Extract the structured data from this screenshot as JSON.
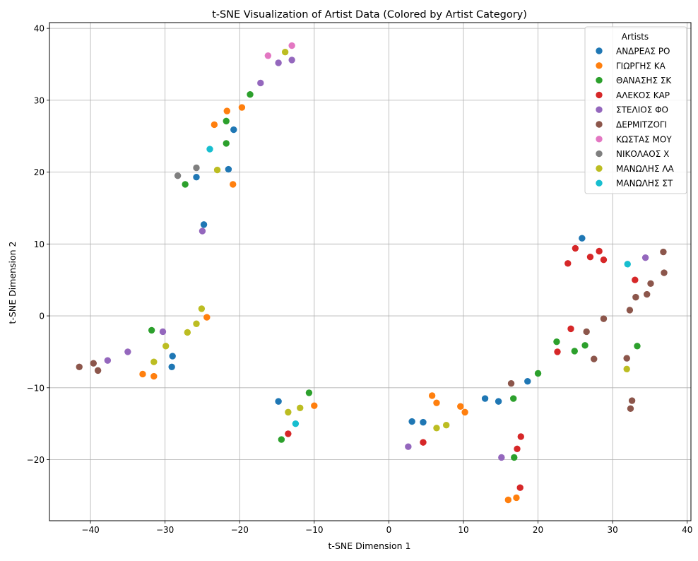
{
  "chart_data": {
    "type": "scatter",
    "title": "t-SNE Visualization of Artist Data (Colored by Artist Category)",
    "xlabel": "t-SNE Dimension 1",
    "ylabel": "t-SNE Dimension 2",
    "xlim": [
      -45.5,
      40.5
    ],
    "ylim": [
      -28.5,
      40.8
    ],
    "x_ticks": [
      -40,
      -30,
      -20,
      -10,
      0,
      10,
      20,
      30,
      40
    ],
    "y_ticks": [
      -20,
      -10,
      0,
      10,
      20,
      30,
      40
    ],
    "grid": true,
    "legend": {
      "title": "Artists",
      "position": "top-right"
    },
    "series": [
      {
        "name": "ΑΝΔΡΕΑΣ ΡΟ",
        "color": "#1f77b4",
        "points": [
          [
            -20.8,
            25.9
          ],
          [
            -25.8,
            19.3
          ],
          [
            -21.5,
            20.4
          ],
          [
            -24.8,
            12.7
          ],
          [
            -29.0,
            -5.6
          ],
          [
            -29.1,
            -7.1
          ],
          [
            -14.8,
            -11.9
          ],
          [
            3.1,
            -14.7
          ],
          [
            4.6,
            -14.8
          ],
          [
            12.9,
            -11.5
          ],
          [
            14.7,
            -11.9
          ],
          [
            18.6,
            -9.1
          ],
          [
            25.9,
            10.8
          ]
        ]
      },
      {
        "name": "ΓΙΩΡΓΗΣ ΚΑ",
        "color": "#ff7f0e",
        "points": [
          [
            -23.4,
            26.6
          ],
          [
            -21.7,
            28.5
          ],
          [
            -19.7,
            29.0
          ],
          [
            -20.9,
            18.3
          ],
          [
            -24.4,
            -0.2
          ],
          [
            -33.0,
            -8.1
          ],
          [
            -31.5,
            -8.4
          ],
          [
            -10.0,
            -12.5
          ],
          [
            5.8,
            -11.1
          ],
          [
            6.4,
            -12.1
          ],
          [
            9.6,
            -12.6
          ],
          [
            10.2,
            -13.4
          ],
          [
            16.0,
            -25.6
          ],
          [
            17.1,
            -25.3
          ]
        ]
      },
      {
        "name": "ΘΑΝΑΣΗΣ ΣΚ",
        "color": "#2ca02c",
        "points": [
          [
            -18.6,
            30.8
          ],
          [
            -21.8,
            27.1
          ],
          [
            -21.8,
            24.0
          ],
          [
            -27.3,
            18.3
          ],
          [
            -31.8,
            -2.0
          ],
          [
            -14.4,
            -17.2
          ],
          [
            -10.7,
            -10.7
          ],
          [
            16.7,
            -11.5
          ],
          [
            20.0,
            -8.0
          ],
          [
            22.5,
            -3.6
          ],
          [
            24.9,
            -4.9
          ],
          [
            26.3,
            -4.1
          ],
          [
            33.3,
            -4.2
          ],
          [
            16.8,
            -19.7
          ]
        ]
      },
      {
        "name": "ΑΛΕΚΟΣ ΚΑΡ",
        "color": "#d62728",
        "points": [
          [
            -13.5,
            -16.4
          ],
          [
            4.6,
            -17.6
          ],
          [
            17.2,
            -18.5
          ],
          [
            17.7,
            -16.8
          ],
          [
            17.6,
            -23.9
          ],
          [
            22.6,
            -5.0
          ],
          [
            24.4,
            -1.8
          ],
          [
            24.0,
            7.3
          ],
          [
            25.0,
            9.4
          ],
          [
            27.0,
            8.2
          ],
          [
            28.2,
            9.0
          ],
          [
            28.8,
            7.8
          ],
          [
            33.0,
            5.0
          ]
        ]
      },
      {
        "name": "ΣΤΕΛΙΟΣ ΦΟ",
        "color": "#9467bd",
        "points": [
          [
            -17.2,
            32.4
          ],
          [
            -14.8,
            35.2
          ],
          [
            -13.0,
            35.6
          ],
          [
            -25.0,
            11.8
          ],
          [
            -30.3,
            -2.2
          ],
          [
            -35.0,
            -5.0
          ],
          [
            -37.7,
            -6.2
          ],
          [
            2.6,
            -18.2
          ],
          [
            15.1,
            -19.7
          ],
          [
            34.4,
            8.1
          ]
        ]
      },
      {
        "name": "ΔΕΡΜΙΤΖΟΓΙ",
        "color": "#8c564b",
        "points": [
          [
            -41.5,
            -7.1
          ],
          [
            -39.6,
            -6.6
          ],
          [
            -39.0,
            -7.6
          ],
          [
            16.4,
            -9.4
          ],
          [
            26.5,
            -2.2
          ],
          [
            27.5,
            -6.0
          ],
          [
            28.8,
            -0.4
          ],
          [
            31.9,
            -5.9
          ],
          [
            32.3,
            0.8
          ],
          [
            33.1,
            2.6
          ],
          [
            34.6,
            3.0
          ],
          [
            35.1,
            4.5
          ],
          [
            36.8,
            8.9
          ],
          [
            36.9,
            6.0
          ],
          [
            32.6,
            -11.8
          ],
          [
            32.4,
            -12.9
          ]
        ]
      },
      {
        "name": "ΚΩΣΤΑΣ ΜΟΥ",
        "color": "#e377c2",
        "points": [
          [
            -16.2,
            36.2
          ],
          [
            -13.0,
            37.6
          ]
        ]
      },
      {
        "name": "ΝΙΚΟΛΑΟΣ Χ",
        "color": "#7f7f7f",
        "points": [
          [
            -28.3,
            19.5
          ],
          [
            -25.8,
            20.6
          ]
        ]
      },
      {
        "name": "ΜΑΝΩΛΗΣ ΛΑ",
        "color": "#bcbd22",
        "points": [
          [
            -13.9,
            36.7
          ],
          [
            -23.0,
            20.3
          ],
          [
            -25.1,
            1.0
          ],
          [
            -25.8,
            -1.1
          ],
          [
            -27.0,
            -2.3
          ],
          [
            -29.9,
            -4.2
          ],
          [
            -31.5,
            -6.4
          ],
          [
            -13.5,
            -13.4
          ],
          [
            -11.9,
            -12.8
          ],
          [
            6.4,
            -15.6
          ],
          [
            7.7,
            -15.2
          ],
          [
            31.9,
            -7.4
          ]
        ]
      },
      {
        "name": "ΜΑΝΩΛΗΣ ΣΤ",
        "color": "#17becf",
        "points": [
          [
            -24.0,
            23.2
          ],
          [
            -12.5,
            -15.0
          ],
          [
            32.0,
            7.2
          ]
        ]
      }
    ]
  }
}
